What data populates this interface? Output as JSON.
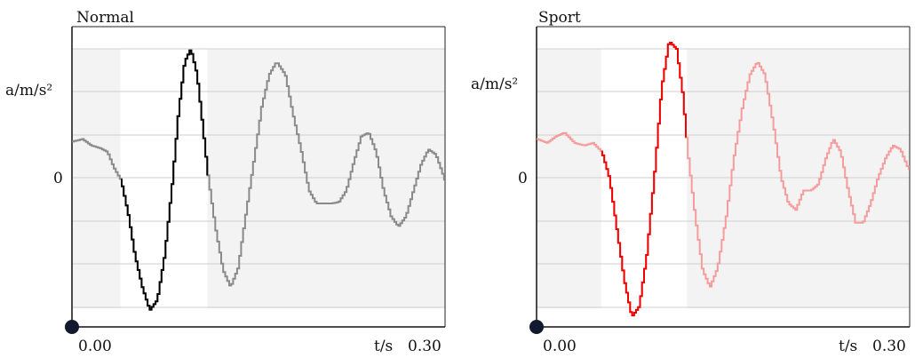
{
  "chart_data": [
    {
      "type": "line",
      "title": "Normal",
      "ylabel": "a/m/s²",
      "xlabel": "t/s",
      "x_tick_start": "0.00",
      "x_tick_end": "0.30",
      "y_zero_label": "0",
      "xlim": [
        0.0,
        0.3
      ],
      "ylim": [
        -1.0,
        1.0
      ],
      "grid": true,
      "highlight_window": [
        0.039,
        0.109
      ],
      "colors": {
        "background": "#f3f3f3",
        "highlight": "#ffffff",
        "inside": "#000000",
        "outside": "#8a8a8a"
      },
      "series": [
        {
          "t": [
            0.0,
            0.008,
            0.015,
            0.022,
            0.028,
            0.033,
            0.039,
            0.045,
            0.05,
            0.056,
            0.062,
            0.068,
            0.074,
            0.08,
            0.085,
            0.09,
            0.095,
            0.1,
            0.104,
            0.109,
            0.115,
            0.121,
            0.127,
            0.133,
            0.139,
            0.146,
            0.152,
            0.158,
            0.164,
            0.171,
            0.177,
            0.184,
            0.19,
            0.196,
            0.202,
            0.208,
            0.214,
            0.22,
            0.226,
            0.232,
            0.238,
            0.244,
            0.25,
            0.256,
            0.262,
            0.268,
            0.274,
            0.28,
            0.286,
            0.292,
            0.298,
            0.3
          ],
          "a": [
            0.28,
            0.3,
            0.25,
            0.23,
            0.2,
            0.08,
            -0.02,
            -0.3,
            -0.6,
            -0.85,
            -1.03,
            -0.95,
            -0.6,
            -0.05,
            0.5,
            0.9,
            1.0,
            0.8,
            0.45,
            0.0,
            -0.4,
            -0.72,
            -0.85,
            -0.7,
            -0.3,
            0.15,
            0.55,
            0.8,
            0.9,
            0.8,
            0.5,
            0.2,
            -0.1,
            -0.2,
            -0.2,
            -0.2,
            -0.19,
            -0.1,
            0.12,
            0.32,
            0.35,
            0.2,
            -0.1,
            -0.3,
            -0.38,
            -0.3,
            -0.1,
            0.1,
            0.22,
            0.18,
            0.02,
            -0.05
          ]
        }
      ]
    },
    {
      "type": "line",
      "title": "Sport",
      "ylabel": "a/m/s²",
      "xlabel": "t/s",
      "x_tick_start": "0.00",
      "x_tick_end": "0.30",
      "y_zero_label": "0",
      "xlim": [
        0.0,
        0.3
      ],
      "ylim": [
        -1.0,
        1.0
      ],
      "grid": true,
      "highlight_window": [
        0.052,
        0.121
      ],
      "colors": {
        "background": "#f3f3f3",
        "highlight": "#ffffff",
        "inside": "#ee0000",
        "outside": "#f59c9c"
      },
      "series": [
        {
          "t": [
            0.0,
            0.008,
            0.015,
            0.022,
            0.03,
            0.038,
            0.045,
            0.052,
            0.058,
            0.064,
            0.07,
            0.076,
            0.082,
            0.088,
            0.094,
            0.1,
            0.106,
            0.112,
            0.117,
            0.121,
            0.127,
            0.133,
            0.139,
            0.145,
            0.152,
            0.158,
            0.165,
            0.171,
            0.177,
            0.183,
            0.19,
            0.196,
            0.202,
            0.208,
            0.214,
            0.22,
            0.226,
            0.232,
            0.238,
            0.244,
            0.25,
            0.256,
            0.262,
            0.268,
            0.274,
            0.28,
            0.286,
            0.292,
            0.298,
            0.3
          ],
          "a": [
            0.3,
            0.27,
            0.32,
            0.35,
            0.27,
            0.25,
            0.27,
            0.2,
            0.0,
            -0.4,
            -0.8,
            -1.08,
            -1.0,
            -0.6,
            0.0,
            0.7,
            1.06,
            1.0,
            0.65,
            0.2,
            -0.3,
            -0.72,
            -0.85,
            -0.7,
            -0.3,
            0.15,
            0.55,
            0.8,
            0.9,
            0.8,
            0.4,
            0.0,
            -0.2,
            -0.25,
            -0.1,
            -0.1,
            -0.05,
            0.15,
            0.3,
            0.2,
            -0.1,
            -0.35,
            -0.35,
            -0.2,
            0.0,
            0.15,
            0.25,
            0.22,
            0.08,
            0.05
          ]
        }
      ]
    }
  ]
}
